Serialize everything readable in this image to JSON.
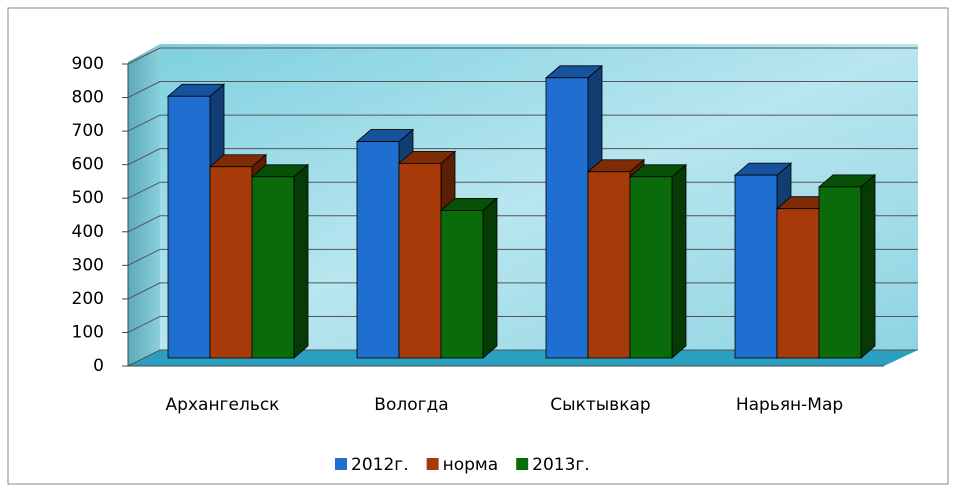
{
  "chart_data": {
    "type": "bar3d",
    "categories": [
      "Архангельск",
      "Вологда",
      "Сыктывкар",
      "Нарьян-Мар"
    ],
    "series": [
      {
        "name": "2012г.",
        "color": "#1f6fd0",
        "values": [
          780,
          645,
          835,
          545
        ]
      },
      {
        "name": "норма",
        "color": "#a63a08",
        "values": [
          570,
          580,
          555,
          445
        ]
      },
      {
        "name": "2013г.",
        "color": "#0a6b0a",
        "values": [
          540,
          440,
          540,
          510
        ]
      }
    ],
    "ylim": [
      0,
      900
    ],
    "yticks": [
      0,
      100,
      200,
      300,
      400,
      500,
      600,
      700,
      800,
      900
    ],
    "grid": true,
    "legend": "bottom"
  }
}
